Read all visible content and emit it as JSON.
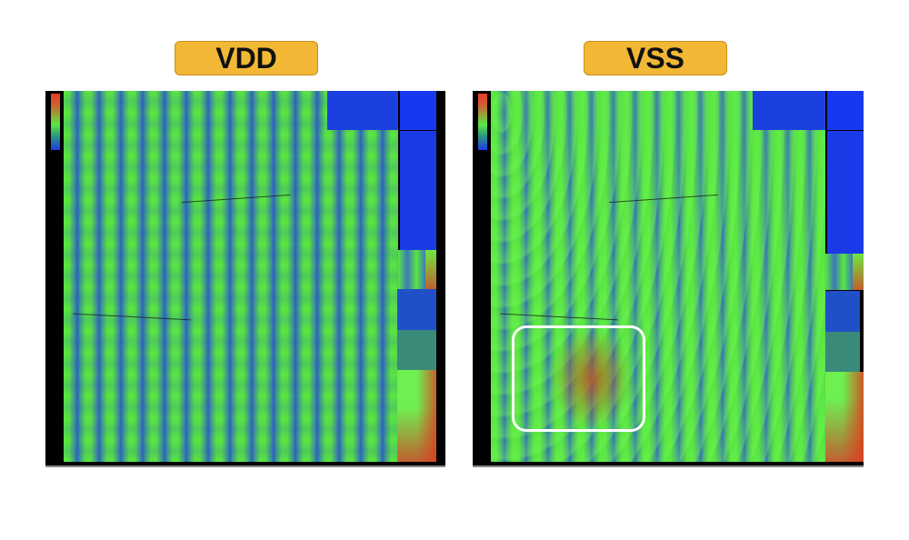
{
  "panels": [
    {
      "label": "VDD"
    },
    {
      "label": "VSS"
    }
  ],
  "colors": {
    "label_bg": "#f2b835",
    "high": "#e83a2a",
    "mid": "#5ae640",
    "low": "#1e3ce8"
  }
}
